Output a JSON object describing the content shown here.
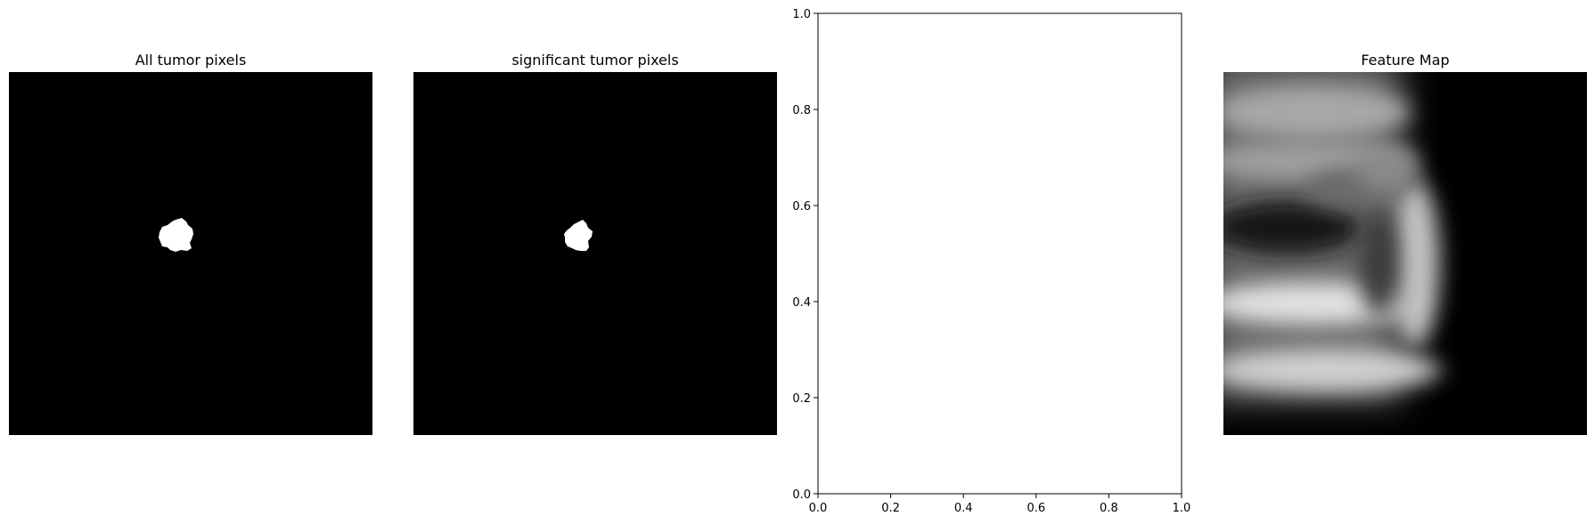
{
  "figure": {
    "panels": [
      {
        "title": "All tumor pixels",
        "content": "binary mask with a single white blob near the upper left"
      },
      {
        "title": "significant tumor pixels",
        "content": "binary mask with a single white blob near the upper left"
      },
      {
        "title": "",
        "content": "empty axes"
      },
      {
        "title": "Feature Map",
        "content": "blurry grayscale feature map"
      }
    ]
  },
  "chart_data": [
    {
      "type": "heatmap",
      "title": "All tumor pixels",
      "colormap": "gray",
      "axis": "off"
    },
    {
      "type": "heatmap",
      "title": "significant tumor pixels",
      "colormap": "gray",
      "axis": "off"
    },
    {
      "type": "scatter",
      "title": "",
      "xlim": [
        0.0,
        1.0
      ],
      "ylim": [
        0.0,
        1.0
      ],
      "xticks": [
        "0.0",
        "0.2",
        "0.4",
        "0.6",
        "0.8",
        "1.0"
      ],
      "yticks": [
        "0.0",
        "0.2",
        "0.4",
        "0.6",
        "0.8",
        "1.0"
      ],
      "series": [],
      "grid": false
    },
    {
      "type": "heatmap",
      "title": "Feature Map",
      "colormap": "gray",
      "axis": "off"
    }
  ]
}
